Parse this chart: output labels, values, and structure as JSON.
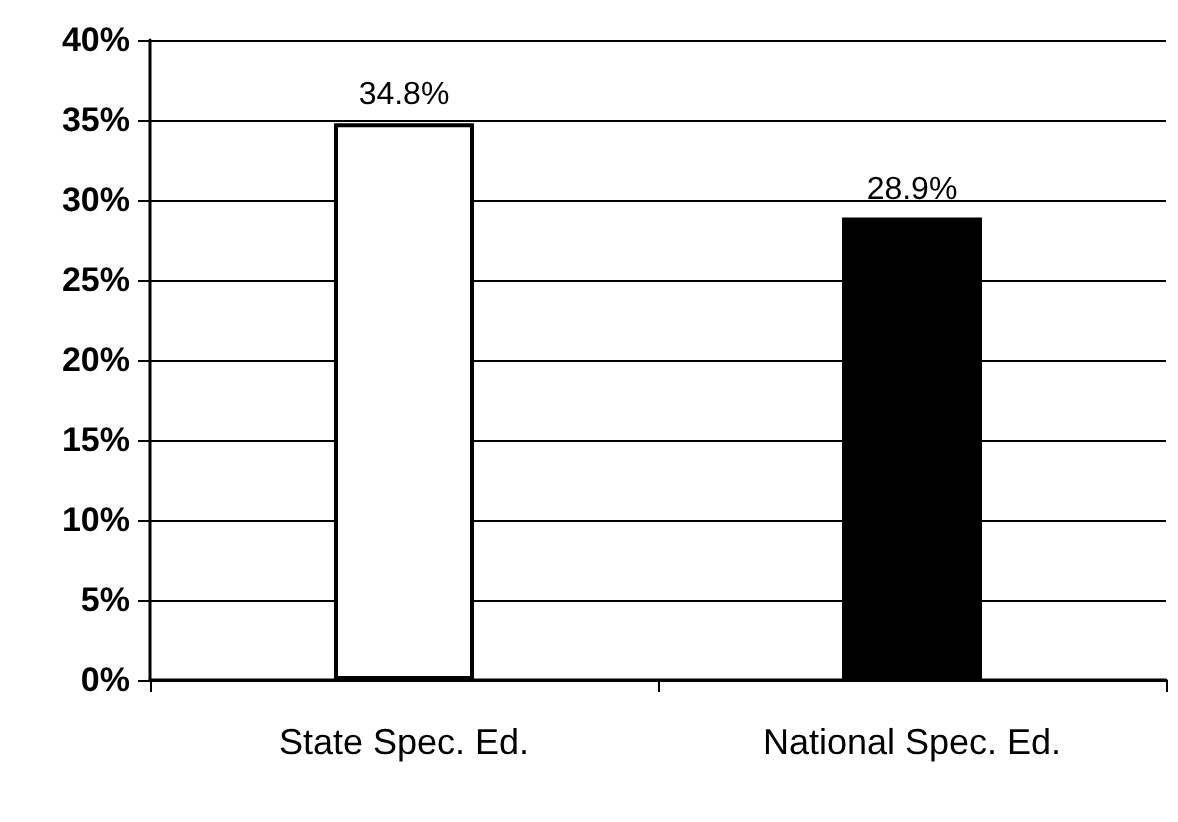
{
  "chart_data": {
    "type": "bar",
    "categories": [
      "State Spec. Ed.",
      "National Spec. Ed."
    ],
    "values": [
      34.8,
      28.9
    ],
    "colors": [
      "#ffffff",
      "#000000"
    ],
    "value_labels": [
      "34.8%",
      "28.9%"
    ],
    "ylim": [
      0,
      40
    ],
    "yticks": [
      {
        "value": 0,
        "label": "0%"
      },
      {
        "value": 5,
        "label": "5%"
      },
      {
        "value": 10,
        "label": "10%"
      },
      {
        "value": 15,
        "label": "15%"
      },
      {
        "value": 20,
        "label": "20%"
      },
      {
        "value": 25,
        "label": "25%"
      },
      {
        "value": 30,
        "label": "30%"
      },
      {
        "value": 35,
        "label": "35%"
      },
      {
        "value": 40,
        "label": "40%"
      }
    ],
    "grid": "y"
  }
}
